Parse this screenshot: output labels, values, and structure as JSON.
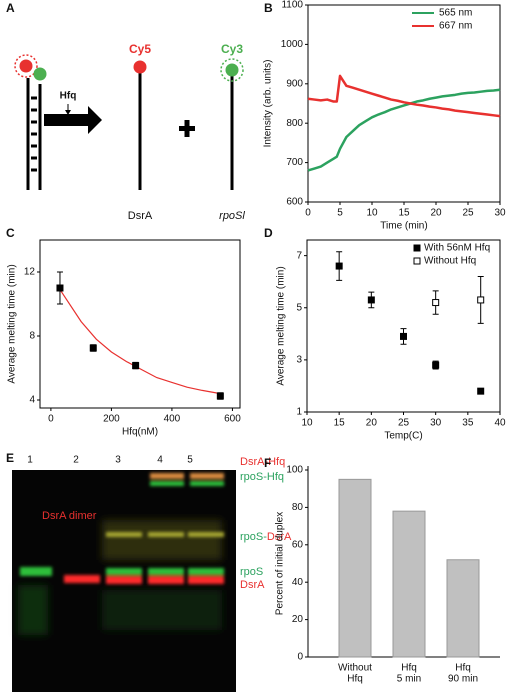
{
  "diagram_a": {
    "panel": "A",
    "hfq": "Hfq",
    "cy5": "Cy5",
    "cy3": "Cy3",
    "strand1": "DsrA",
    "strand2": "rpoSl"
  },
  "chart_data": [
    {
      "panel": "B",
      "type": "line",
      "x": [
        0,
        1,
        2,
        3,
        4,
        4.5,
        5,
        6,
        7,
        8,
        9,
        10,
        11,
        12,
        13,
        14,
        15,
        16,
        17,
        18,
        19,
        20,
        21,
        22,
        23,
        24,
        25,
        26,
        27,
        28,
        29,
        30
      ],
      "series": [
        {
          "name": "565 nm",
          "color": "#2ca25f",
          "values": [
            680,
            685,
            690,
            700,
            710,
            715,
            735,
            765,
            780,
            795,
            805,
            815,
            822,
            828,
            835,
            840,
            845,
            850,
            855,
            858,
            862,
            865,
            868,
            870,
            872,
            875,
            877,
            878,
            880,
            882,
            883,
            885
          ]
        },
        {
          "name": "667 nm",
          "color": "#e8312f",
          "values": [
            862,
            860,
            858,
            860,
            855,
            855,
            920,
            895,
            890,
            885,
            880,
            875,
            870,
            865,
            860,
            857,
            853,
            850,
            847,
            845,
            842,
            840,
            837,
            835,
            832,
            830,
            828,
            826,
            824,
            822,
            820,
            818
          ]
        }
      ],
      "xlim": [
        0,
        30
      ],
      "xticks": [
        0,
        5,
        10,
        15,
        20,
        25,
        30
      ],
      "ylim": [
        600,
        1100
      ],
      "yticks": [
        600,
        700,
        800,
        900,
        1000,
        1100
      ],
      "xlabel": "Time (min)",
      "ylabel": "Intensity (arb. units)",
      "legend": "upper right"
    },
    {
      "panel": "C",
      "type": "scatter",
      "x": [
        30,
        140,
        280,
        560
      ],
      "values": [
        11.0,
        7.25,
        6.15,
        4.25
      ],
      "errors": [
        1.0,
        0.2,
        0.2,
        0.2
      ],
      "color": "#000000",
      "fit": {
        "x": [
          30,
          100,
          150,
          200,
          250,
          300,
          350,
          400,
          450,
          500,
          560
        ],
        "values": [
          10.9,
          8.9,
          7.8,
          7.0,
          6.4,
          5.9,
          5.4,
          5.1,
          4.8,
          4.6,
          4.4
        ],
        "color": "#e8312f"
      },
      "xlim": [
        -36,
        625
      ],
      "xticks": [
        0,
        200,
        400,
        600
      ],
      "ylim": [
        3.5,
        14
      ],
      "yticks": [
        4,
        8,
        12
      ],
      "xlabel": "Hfq(nM)",
      "ylabel": "Average melting time (min)"
    },
    {
      "panel": "D",
      "type": "scatter",
      "series": [
        {
          "name": "With 56nM Hfq",
          "marker": "filled",
          "color": "#000000",
          "x": [
            15,
            20,
            25,
            30,
            37
          ],
          "values": [
            6.6,
            5.3,
            3.9,
            2.8,
            1.8
          ],
          "errors": [
            0.55,
            0.3,
            0.3,
            0.15,
            0.05
          ]
        },
        {
          "name": "Without Hfq",
          "marker": "open",
          "color": "#000000",
          "x": [
            30,
            37
          ],
          "values": [
            5.2,
            5.3
          ],
          "errors": [
            0.45,
            0.9
          ]
        }
      ],
      "xlim": [
        10,
        40
      ],
      "xticks": [
        10,
        15,
        20,
        25,
        30,
        35,
        40
      ],
      "ylim": [
        1,
        7.6
      ],
      "yticks": [
        1,
        3,
        5,
        7
      ],
      "xlabel": "Temp(C)",
      "ylabel": "Average melting time (min)",
      "legend": "upper right"
    },
    {
      "panel": "F",
      "type": "bar",
      "categories": [
        [
          "Without",
          "Hfq"
        ],
        [
          "Hfq",
          "5 min"
        ],
        [
          "Hfq",
          "90 min"
        ]
      ],
      "values": [
        95,
        78,
        52
      ],
      "color": "#c0c0c0",
      "ylim": [
        0,
        100
      ],
      "yticks": [
        0,
        20,
        40,
        60,
        80,
        100
      ],
      "ylabel": "Percent of initial duplex"
    }
  ],
  "gel_e": {
    "panel": "E",
    "lanes": [
      "1",
      "2",
      "3",
      "4",
      "5"
    ],
    "inner_label": "DsrA dimer",
    "inner_label_color": "#e8312f",
    "band_labels": [
      [
        {
          "text": "DsrA-Hfq",
          "color": "#e8312f"
        }
      ],
      [
        {
          "text": "rpoS-Hfq",
          "color": "#2ca25f"
        }
      ],
      [
        {
          "text": "rpoS-",
          "color": "#2ca25f"
        },
        {
          "text": "DsrA",
          "color": "#e8312f"
        }
      ],
      [
        {
          "text": "rpoS",
          "color": "#2ca25f"
        }
      ],
      [
        {
          "text": "DsrA",
          "color": "#e8312f"
        }
      ]
    ]
  }
}
